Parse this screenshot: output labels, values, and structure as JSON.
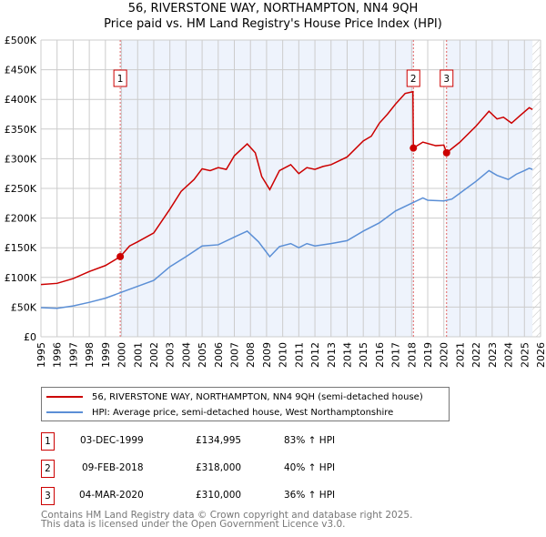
{
  "chart_data": {
    "type": "line",
    "title": "56, RIVERSTONE WAY, NORTHAMPTON, NN4 9QH",
    "subtitle": "Price paid vs. HM Land Registry's House Price Index (HPI)",
    "xlim": [
      1995,
      2026
    ],
    "ylim": [
      0,
      500000
    ],
    "x_ticks": [
      "1995",
      "1996",
      "1997",
      "1998",
      "1999",
      "2000",
      "2001",
      "2002",
      "2003",
      "2004",
      "2005",
      "2006",
      "2007",
      "2008",
      "2009",
      "2010",
      "2011",
      "2012",
      "2013",
      "2014",
      "2015",
      "2016",
      "2017",
      "2018",
      "2019",
      "2020",
      "2021",
      "2022",
      "2023",
      "2024",
      "2025",
      "2026"
    ],
    "y_ticks": [
      {
        "v": 0,
        "l": "£0"
      },
      {
        "v": 50000,
        "l": "£50K"
      },
      {
        "v": 100000,
        "l": "£100K"
      },
      {
        "v": 150000,
        "l": "£150K"
      },
      {
        "v": 200000,
        "l": "£200K"
      },
      {
        "v": 250000,
        "l": "£250K"
      },
      {
        "v": 300000,
        "l": "£300K"
      },
      {
        "v": 350000,
        "l": "£350K"
      },
      {
        "v": 400000,
        "l": "£400K"
      },
      {
        "v": 450000,
        "l": "£450K"
      },
      {
        "v": 500000,
        "l": "£500K"
      }
    ],
    "grid": true,
    "series": [
      {
        "name": "56, RIVERSTONE WAY, NORTHAMPTON, NN4 9QH (semi-detached house)",
        "color": "#cc0000",
        "points": [
          [
            1995,
            88000
          ],
          [
            1996,
            90000
          ],
          [
            1997,
            98000
          ],
          [
            1998,
            110000
          ],
          [
            1999,
            120000
          ],
          [
            1999.92,
            135000
          ],
          [
            2000.5,
            153000
          ],
          [
            2001,
            160000
          ],
          [
            2002,
            175000
          ],
          [
            2003,
            215000
          ],
          [
            2003.7,
            245000
          ],
          [
            2004.5,
            265000
          ],
          [
            2005,
            283000
          ],
          [
            2005.5,
            280000
          ],
          [
            2006,
            285000
          ],
          [
            2006.5,
            282000
          ],
          [
            2007,
            305000
          ],
          [
            2007.8,
            325000
          ],
          [
            2008.3,
            310000
          ],
          [
            2008.7,
            270000
          ],
          [
            2009.2,
            248000
          ],
          [
            2009.8,
            280000
          ],
          [
            2010.5,
            290000
          ],
          [
            2011,
            275000
          ],
          [
            2011.5,
            285000
          ],
          [
            2012,
            282000
          ],
          [
            2012.5,
            287000
          ],
          [
            2013,
            290000
          ],
          [
            2014,
            303000
          ],
          [
            2015,
            330000
          ],
          [
            2015.5,
            338000
          ],
          [
            2016,
            360000
          ],
          [
            2016.5,
            375000
          ],
          [
            2017,
            392000
          ],
          [
            2017.6,
            410000
          ],
          [
            2018.08,
            413000
          ],
          [
            2018.11,
            318000
          ],
          [
            2018.7,
            328000
          ],
          [
            2019.5,
            322000
          ],
          [
            2020,
            323000
          ],
          [
            2020.17,
            310000
          ],
          [
            2021,
            328000
          ],
          [
            2022,
            355000
          ],
          [
            2022.8,
            380000
          ],
          [
            2023.3,
            367000
          ],
          [
            2023.7,
            370000
          ],
          [
            2024.2,
            360000
          ],
          [
            2024.7,
            372000
          ],
          [
            2025.3,
            386000
          ],
          [
            2025.5,
            383000
          ]
        ]
      },
      {
        "name": "HPI: Average price, semi-detached house, West Northamptonshire",
        "color": "#5b8fd6",
        "points": [
          [
            1995,
            49000
          ],
          [
            1996,
            48000
          ],
          [
            1997,
            52000
          ],
          [
            1998,
            58000
          ],
          [
            1999,
            65000
          ],
          [
            2000,
            75000
          ],
          [
            2001,
            85000
          ],
          [
            2002,
            95000
          ],
          [
            2003,
            118000
          ],
          [
            2004,
            135000
          ],
          [
            2005,
            153000
          ],
          [
            2006,
            155000
          ],
          [
            2007,
            168000
          ],
          [
            2007.8,
            178000
          ],
          [
            2008.5,
            160000
          ],
          [
            2009.2,
            135000
          ],
          [
            2009.8,
            152000
          ],
          [
            2010.5,
            157000
          ],
          [
            2011,
            150000
          ],
          [
            2011.5,
            157000
          ],
          [
            2012,
            153000
          ],
          [
            2013,
            157000
          ],
          [
            2014,
            162000
          ],
          [
            2015,
            178000
          ],
          [
            2016,
            192000
          ],
          [
            2017,
            212000
          ],
          [
            2018,
            225000
          ],
          [
            2018.7,
            234000
          ],
          [
            2019,
            230000
          ],
          [
            2020,
            229000
          ],
          [
            2020.5,
            232000
          ],
          [
            2021,
            242000
          ],
          [
            2022,
            262000
          ],
          [
            2022.8,
            280000
          ],
          [
            2023.3,
            272000
          ],
          [
            2024,
            265000
          ],
          [
            2024.5,
            274000
          ],
          [
            2025,
            280000
          ],
          [
            2025.3,
            284000
          ],
          [
            2025.5,
            282000
          ]
        ]
      }
    ],
    "sales": [
      {
        "label": "1",
        "x": 1999.92,
        "y": 134995
      },
      {
        "label": "2",
        "x": 2018.11,
        "y": 318000
      },
      {
        "label": "3",
        "x": 2020.17,
        "y": 310000
      }
    ],
    "shaded": [
      [
        1999.92,
        2018.11
      ],
      [
        2020.17,
        2025.5
      ]
    ],
    "hatched_from": 2025.5,
    "legend_position": "below"
  },
  "legend": [
    "56, RIVERSTONE WAY, NORTHAMPTON, NN4 9QH (semi-detached house)",
    "HPI: Average price, semi-detached house, West Northamptonshire"
  ],
  "table": [
    {
      "num": "1",
      "date": "03-DEC-1999",
      "price": "£134,995",
      "hpi": "83% ↑ HPI"
    },
    {
      "num": "2",
      "date": "09-FEB-2018",
      "price": "£318,000",
      "hpi": "40% ↑ HPI"
    },
    {
      "num": "3",
      "date": "04-MAR-2020",
      "price": "£310,000",
      "hpi": "36% ↑ HPI"
    }
  ],
  "footer": [
    "Contains HM Land Registry data © Crown copyright and database right 2025.",
    "This data is licensed under the Open Government Licence v3.0."
  ]
}
